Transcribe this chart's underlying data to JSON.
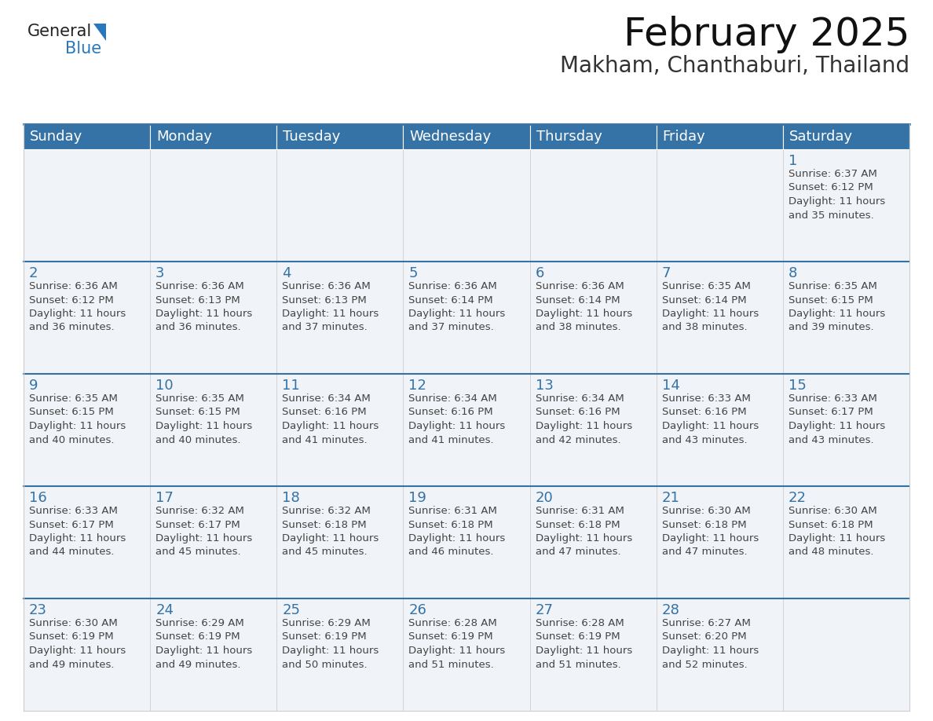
{
  "title": "February 2025",
  "subtitle": "Makham, Chanthaburi, Thailand",
  "header_bg": "#3572a5",
  "header_text_color": "#ffffff",
  "cell_bg": "#f0f4f8",
  "cell_bg_empty": "#f0f4f8",
  "divider_color": "#3572a5",
  "grid_color": "#cccccc",
  "day_number_color": "#3572a5",
  "info_text_color": "#444444",
  "days_of_week": [
    "Sunday",
    "Monday",
    "Tuesday",
    "Wednesday",
    "Thursday",
    "Friday",
    "Saturday"
  ],
  "calendar_data": [
    [
      {
        "day": null,
        "info": ""
      },
      {
        "day": null,
        "info": ""
      },
      {
        "day": null,
        "info": ""
      },
      {
        "day": null,
        "info": ""
      },
      {
        "day": null,
        "info": ""
      },
      {
        "day": null,
        "info": ""
      },
      {
        "day": 1,
        "info": "Sunrise: 6:37 AM\nSunset: 6:12 PM\nDaylight: 11 hours\nand 35 minutes."
      }
    ],
    [
      {
        "day": 2,
        "info": "Sunrise: 6:36 AM\nSunset: 6:12 PM\nDaylight: 11 hours\nand 36 minutes."
      },
      {
        "day": 3,
        "info": "Sunrise: 6:36 AM\nSunset: 6:13 PM\nDaylight: 11 hours\nand 36 minutes."
      },
      {
        "day": 4,
        "info": "Sunrise: 6:36 AM\nSunset: 6:13 PM\nDaylight: 11 hours\nand 37 minutes."
      },
      {
        "day": 5,
        "info": "Sunrise: 6:36 AM\nSunset: 6:14 PM\nDaylight: 11 hours\nand 37 minutes."
      },
      {
        "day": 6,
        "info": "Sunrise: 6:36 AM\nSunset: 6:14 PM\nDaylight: 11 hours\nand 38 minutes."
      },
      {
        "day": 7,
        "info": "Sunrise: 6:35 AM\nSunset: 6:14 PM\nDaylight: 11 hours\nand 38 minutes."
      },
      {
        "day": 8,
        "info": "Sunrise: 6:35 AM\nSunset: 6:15 PM\nDaylight: 11 hours\nand 39 minutes."
      }
    ],
    [
      {
        "day": 9,
        "info": "Sunrise: 6:35 AM\nSunset: 6:15 PM\nDaylight: 11 hours\nand 40 minutes."
      },
      {
        "day": 10,
        "info": "Sunrise: 6:35 AM\nSunset: 6:15 PM\nDaylight: 11 hours\nand 40 minutes."
      },
      {
        "day": 11,
        "info": "Sunrise: 6:34 AM\nSunset: 6:16 PM\nDaylight: 11 hours\nand 41 minutes."
      },
      {
        "day": 12,
        "info": "Sunrise: 6:34 AM\nSunset: 6:16 PM\nDaylight: 11 hours\nand 41 minutes."
      },
      {
        "day": 13,
        "info": "Sunrise: 6:34 AM\nSunset: 6:16 PM\nDaylight: 11 hours\nand 42 minutes."
      },
      {
        "day": 14,
        "info": "Sunrise: 6:33 AM\nSunset: 6:16 PM\nDaylight: 11 hours\nand 43 minutes."
      },
      {
        "day": 15,
        "info": "Sunrise: 6:33 AM\nSunset: 6:17 PM\nDaylight: 11 hours\nand 43 minutes."
      }
    ],
    [
      {
        "day": 16,
        "info": "Sunrise: 6:33 AM\nSunset: 6:17 PM\nDaylight: 11 hours\nand 44 minutes."
      },
      {
        "day": 17,
        "info": "Sunrise: 6:32 AM\nSunset: 6:17 PM\nDaylight: 11 hours\nand 45 minutes."
      },
      {
        "day": 18,
        "info": "Sunrise: 6:32 AM\nSunset: 6:18 PM\nDaylight: 11 hours\nand 45 minutes."
      },
      {
        "day": 19,
        "info": "Sunrise: 6:31 AM\nSunset: 6:18 PM\nDaylight: 11 hours\nand 46 minutes."
      },
      {
        "day": 20,
        "info": "Sunrise: 6:31 AM\nSunset: 6:18 PM\nDaylight: 11 hours\nand 47 minutes."
      },
      {
        "day": 21,
        "info": "Sunrise: 6:30 AM\nSunset: 6:18 PM\nDaylight: 11 hours\nand 47 minutes."
      },
      {
        "day": 22,
        "info": "Sunrise: 6:30 AM\nSunset: 6:18 PM\nDaylight: 11 hours\nand 48 minutes."
      }
    ],
    [
      {
        "day": 23,
        "info": "Sunrise: 6:30 AM\nSunset: 6:19 PM\nDaylight: 11 hours\nand 49 minutes."
      },
      {
        "day": 24,
        "info": "Sunrise: 6:29 AM\nSunset: 6:19 PM\nDaylight: 11 hours\nand 49 minutes."
      },
      {
        "day": 25,
        "info": "Sunrise: 6:29 AM\nSunset: 6:19 PM\nDaylight: 11 hours\nand 50 minutes."
      },
      {
        "day": 26,
        "info": "Sunrise: 6:28 AM\nSunset: 6:19 PM\nDaylight: 11 hours\nand 51 minutes."
      },
      {
        "day": 27,
        "info": "Sunrise: 6:28 AM\nSunset: 6:19 PM\nDaylight: 11 hours\nand 51 minutes."
      },
      {
        "day": 28,
        "info": "Sunrise: 6:27 AM\nSunset: 6:20 PM\nDaylight: 11 hours\nand 52 minutes."
      },
      {
        "day": null,
        "info": ""
      }
    ]
  ],
  "logo_text1": "General",
  "logo_text2": "Blue",
  "logo_color1": "#222222",
  "logo_color2": "#2878c0",
  "logo_triangle_color": "#2878c0",
  "title_fontsize": 36,
  "subtitle_fontsize": 20,
  "header_fontsize": 13,
  "day_num_fontsize": 13,
  "info_fontsize": 9.5
}
